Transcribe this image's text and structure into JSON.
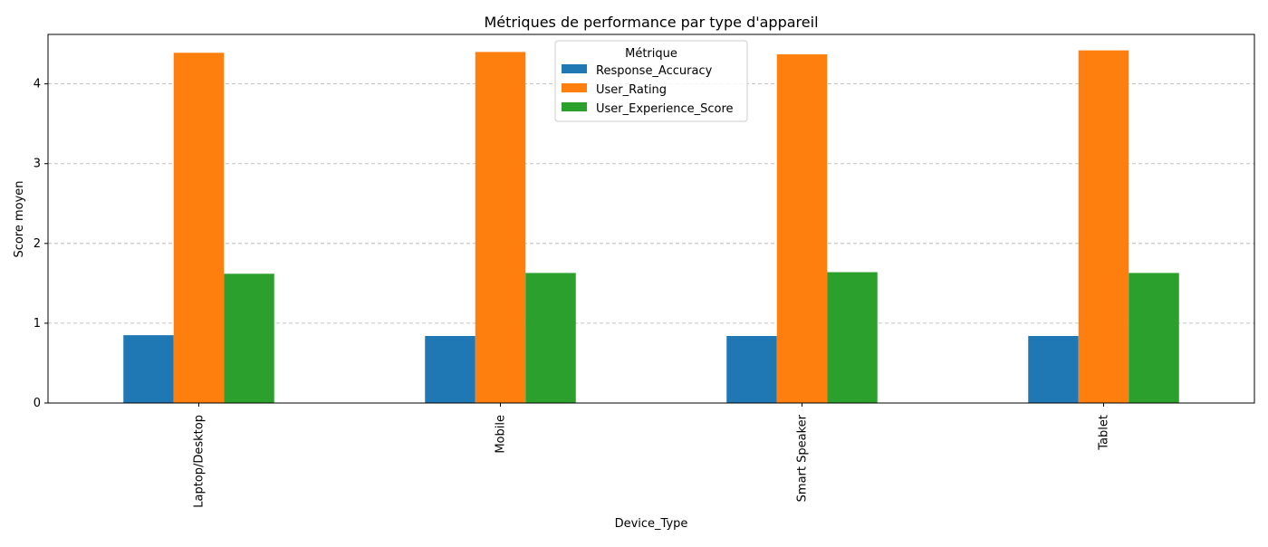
{
  "chart_data": {
    "type": "bar",
    "title": "Métriques de performance par type d'appareil",
    "xlabel": "Device_Type",
    "ylabel": "Score moyen",
    "categories": [
      "Laptop/Desktop",
      "Mobile",
      "Smart Speaker",
      "Tablet"
    ],
    "ylim": [
      0,
      4.62
    ],
    "yticks": [
      0,
      1,
      2,
      3,
      4
    ],
    "grid": "y-dashed",
    "legend": {
      "title": "Métrique",
      "placement": "top-center"
    },
    "series": [
      {
        "name": "Response_Accuracy",
        "color": "#1f77b4",
        "values": [
          0.85,
          0.84,
          0.84,
          0.84
        ]
      },
      {
        "name": "User_Rating",
        "color": "#ff7f0e",
        "values": [
          4.39,
          4.4,
          4.37,
          4.42
        ]
      },
      {
        "name": "User_Experience_Score",
        "color": "#2ca02c",
        "values": [
          1.62,
          1.63,
          1.64,
          1.63
        ]
      }
    ]
  }
}
